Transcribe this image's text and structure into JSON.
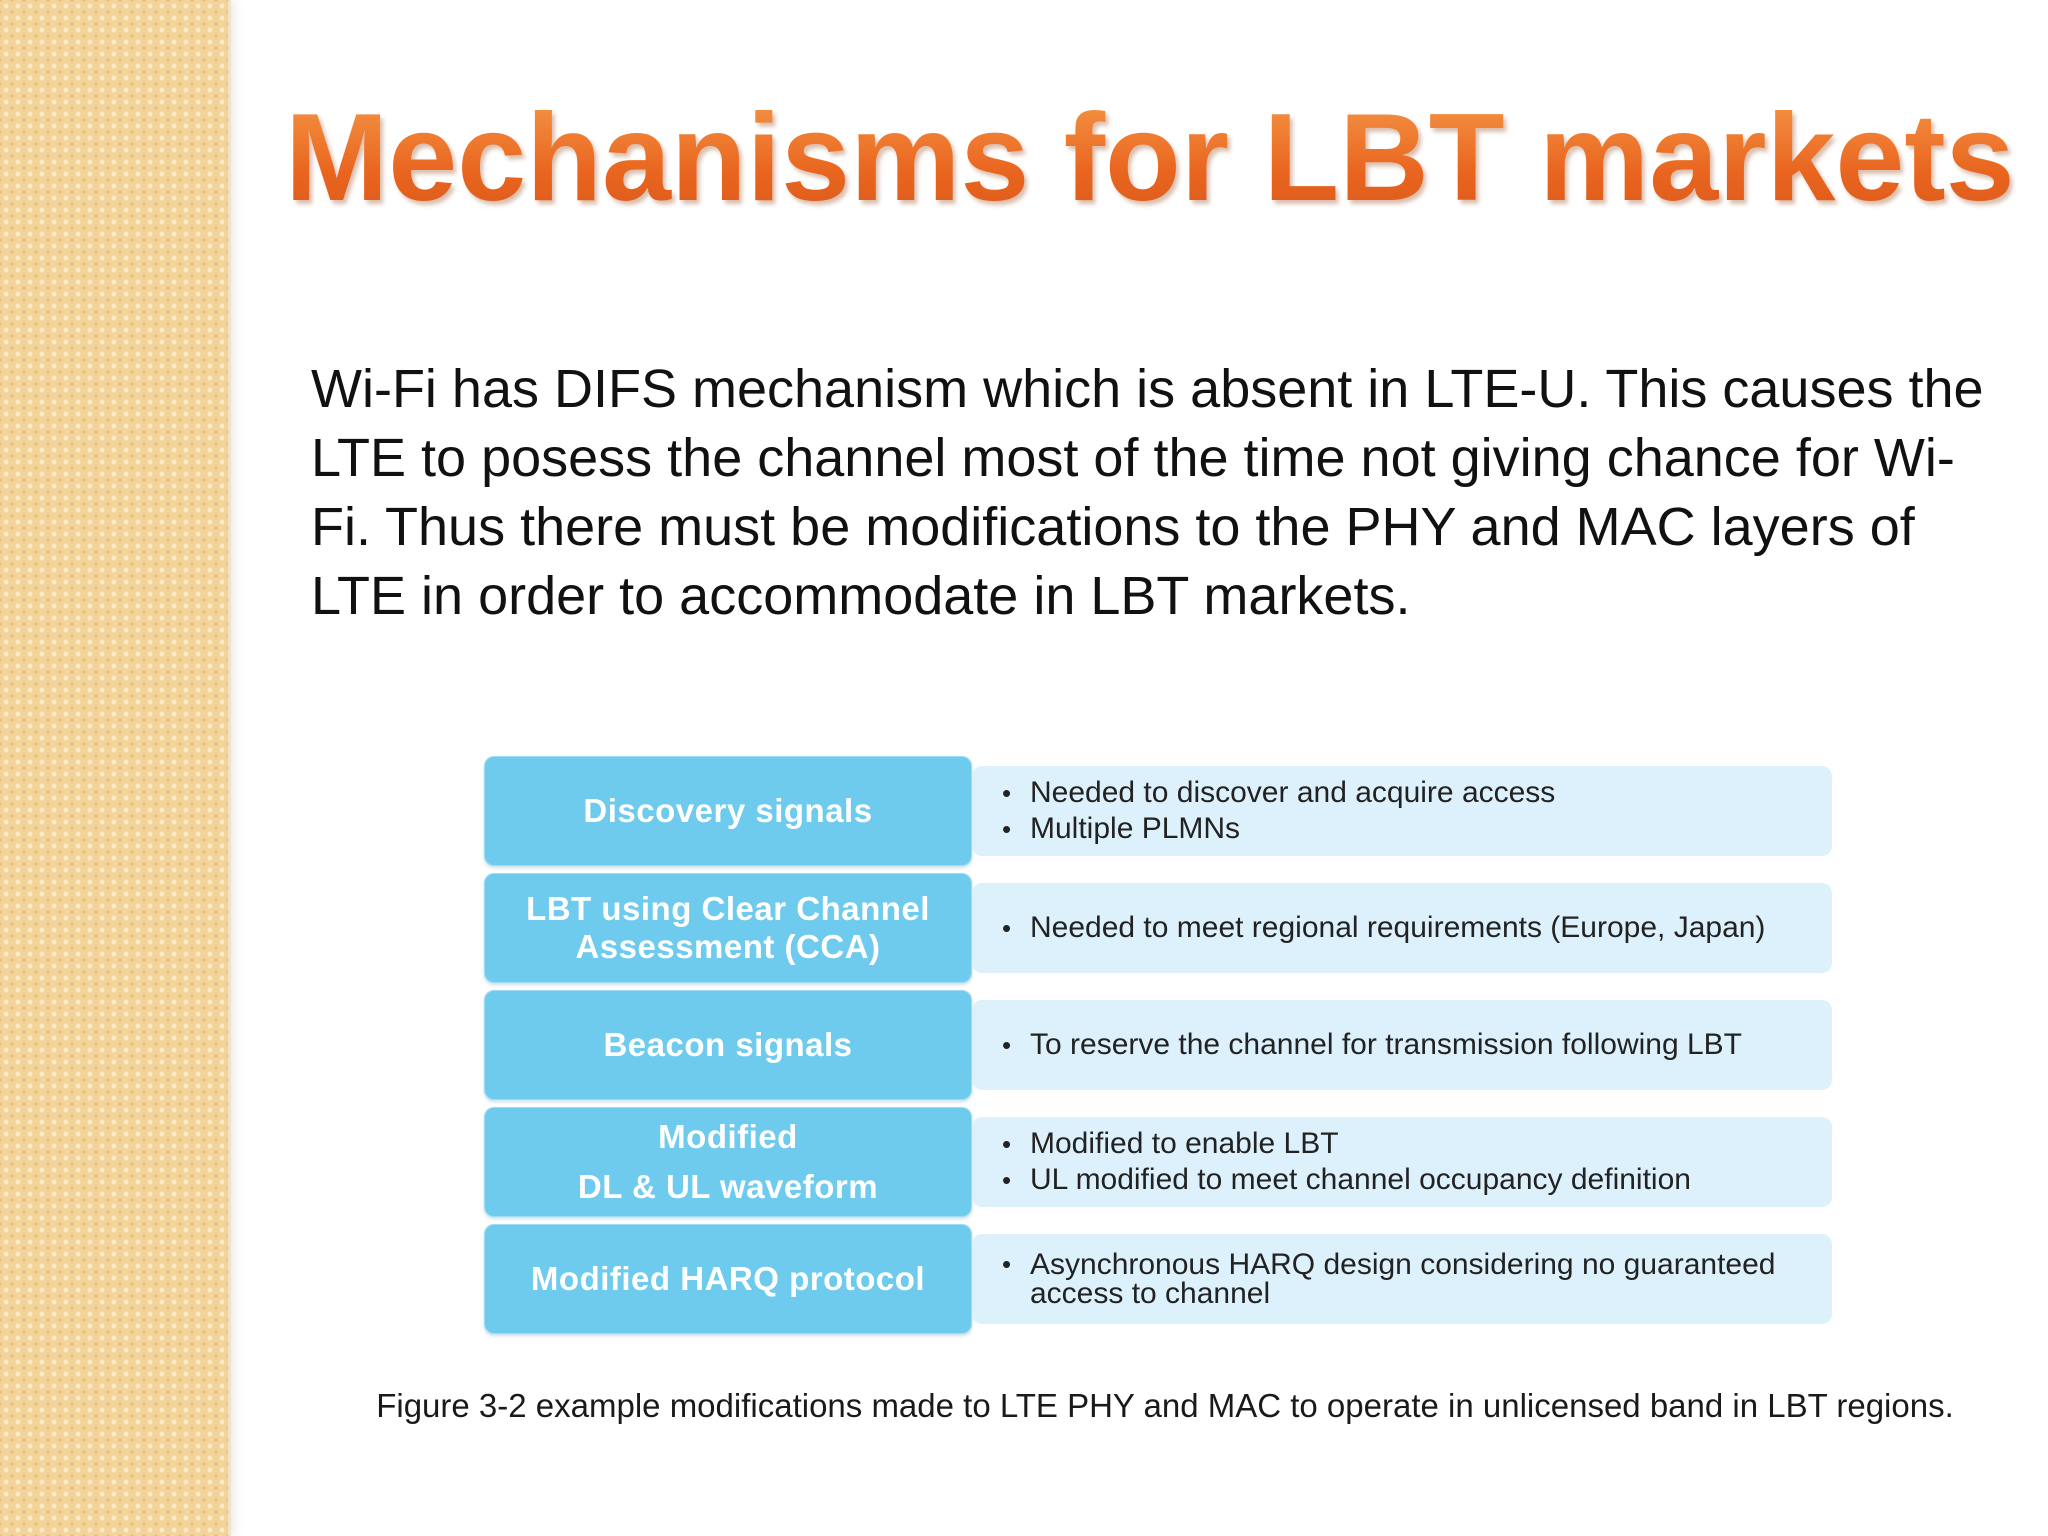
{
  "slide": {
    "title": "Mechanisms for LBT markets",
    "body": "Wi-Fi has DIFS mechanism which is absent in LTE-U. This causes the LTE to posess the channel most of the time not giving chance for Wi-Fi. Thus there must be modifications to the PHY and MAC layers of LTE in order to accommodate in  LBT markets."
  },
  "figure": {
    "rows": [
      {
        "label_lines": [
          "Discovery signals"
        ],
        "bullets": [
          "Needed to discover and acquire access",
          "Multiple PLMNs"
        ]
      },
      {
        "label_lines": [
          "LBT using Clear Channel",
          "Assessment (CCA)"
        ],
        "bullets": [
          "Needed to meet regional requirements (Europe, Japan)"
        ]
      },
      {
        "label_lines": [
          "Beacon signals"
        ],
        "bullets": [
          "To reserve the channel for transmission following LBT"
        ]
      },
      {
        "label_lines": [
          "Modified",
          "DL & UL waveform"
        ],
        "bullets": [
          "Modified to enable LBT",
          "UL modified to meet channel occupancy definition"
        ]
      },
      {
        "label_lines": [
          "Modified HARQ protocol"
        ],
        "bullets": [
          "Asynchronous HARQ design considering no guaranteed access to channel"
        ]
      }
    ],
    "bullet_symbol": "•",
    "caption": "Figure 3-2 example modifications made to LTE PHY and MAC to operate in unlicensed band in LBT regions."
  },
  "colors": {
    "title": "#f07a2e",
    "label_fill": "#6ecbee",
    "detail_fill": "#ddf1fc",
    "side_strip": "#f2d49a"
  }
}
